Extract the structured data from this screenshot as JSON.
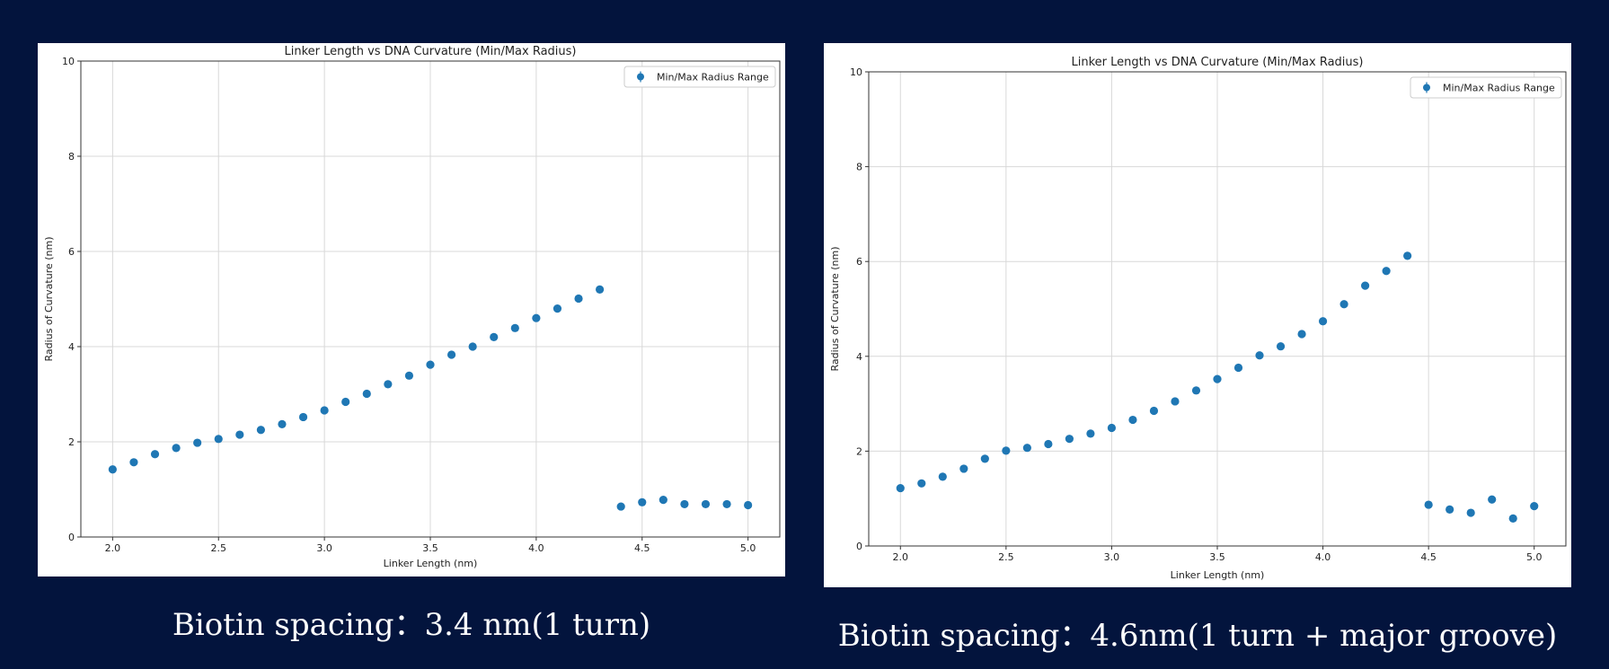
{
  "chart_data": [
    {
      "type": "scatter",
      "title": "Linker Length vs DNA Curvature (Min/Max Radius)",
      "xlabel": "Linker Length (nm)",
      "ylabel": "Radius of Curvature (nm)",
      "xlim": [
        1.85,
        5.15
      ],
      "ylim": [
        0,
        10
      ],
      "xticks": [
        "2.0",
        "2.5",
        "3.0",
        "3.5",
        "4.0",
        "4.5",
        "5.0"
      ],
      "yticks": [
        "0",
        "2",
        "4",
        "6",
        "8",
        "10"
      ],
      "grid": true,
      "legend_position": "top-right",
      "marker_color": "#1f77b4",
      "series": [
        {
          "name": "Min/Max Radius Range",
          "x": [
            2.0,
            2.1,
            2.2,
            2.3,
            2.4,
            2.5,
            2.6,
            2.7,
            2.8,
            2.9,
            3.0,
            3.1,
            3.2,
            3.3,
            3.4,
            3.5,
            3.6,
            3.7,
            3.8,
            3.9,
            4.0,
            4.1,
            4.2,
            4.3,
            4.4,
            4.5,
            4.6,
            4.7,
            4.8,
            4.9,
            5.0
          ],
          "y": [
            1.42,
            1.57,
            1.74,
            1.87,
            1.98,
            2.06,
            2.15,
            2.25,
            2.37,
            2.52,
            2.66,
            2.84,
            3.01,
            3.21,
            3.39,
            3.62,
            3.83,
            4.0,
            4.2,
            4.39,
            4.6,
            4.8,
            5.01,
            5.2,
            0.64,
            0.73,
            0.78,
            0.69,
            0.69,
            0.69,
            0.67
          ]
        }
      ]
    },
    {
      "type": "scatter",
      "title": "Linker Length vs DNA Curvature (Min/Max Radius)",
      "xlabel": "Linker Length (nm)",
      "ylabel": "Radius of Curvature (nm)",
      "xlim": [
        1.85,
        5.15
      ],
      "ylim": [
        0,
        10
      ],
      "xticks": [
        "2.0",
        "2.5",
        "3.0",
        "3.5",
        "4.0",
        "4.5",
        "5.0"
      ],
      "yticks": [
        "0",
        "2",
        "4",
        "6",
        "8",
        "10"
      ],
      "grid": true,
      "legend_position": "top-right",
      "marker_color": "#1f77b4",
      "series": [
        {
          "name": "Min/Max Radius Range",
          "x": [
            2.0,
            2.1,
            2.2,
            2.3,
            2.4,
            2.5,
            2.6,
            2.7,
            2.8,
            2.9,
            3.0,
            3.1,
            3.2,
            3.3,
            3.4,
            3.5,
            3.6,
            3.7,
            3.8,
            3.9,
            4.0,
            4.1,
            4.2,
            4.3,
            4.4,
            4.5,
            4.6,
            4.7,
            4.8,
            4.9,
            5.0
          ],
          "y": [
            1.22,
            1.32,
            1.46,
            1.63,
            1.84,
            2.01,
            2.07,
            2.15,
            2.26,
            2.37,
            2.49,
            2.66,
            2.85,
            3.05,
            3.28,
            3.52,
            3.76,
            4.02,
            4.21,
            4.47,
            4.74,
            5.1,
            5.49,
            5.8,
            6.12,
            0.87,
            0.77,
            0.7,
            0.98,
            0.58,
            0.84
          ]
        }
      ]
    }
  ],
  "captions": {
    "left": "Biotin spacing：3.4 nm(1 turn)",
    "right": "Biotin spacing：4.6nm(1 turn + major groove)"
  }
}
